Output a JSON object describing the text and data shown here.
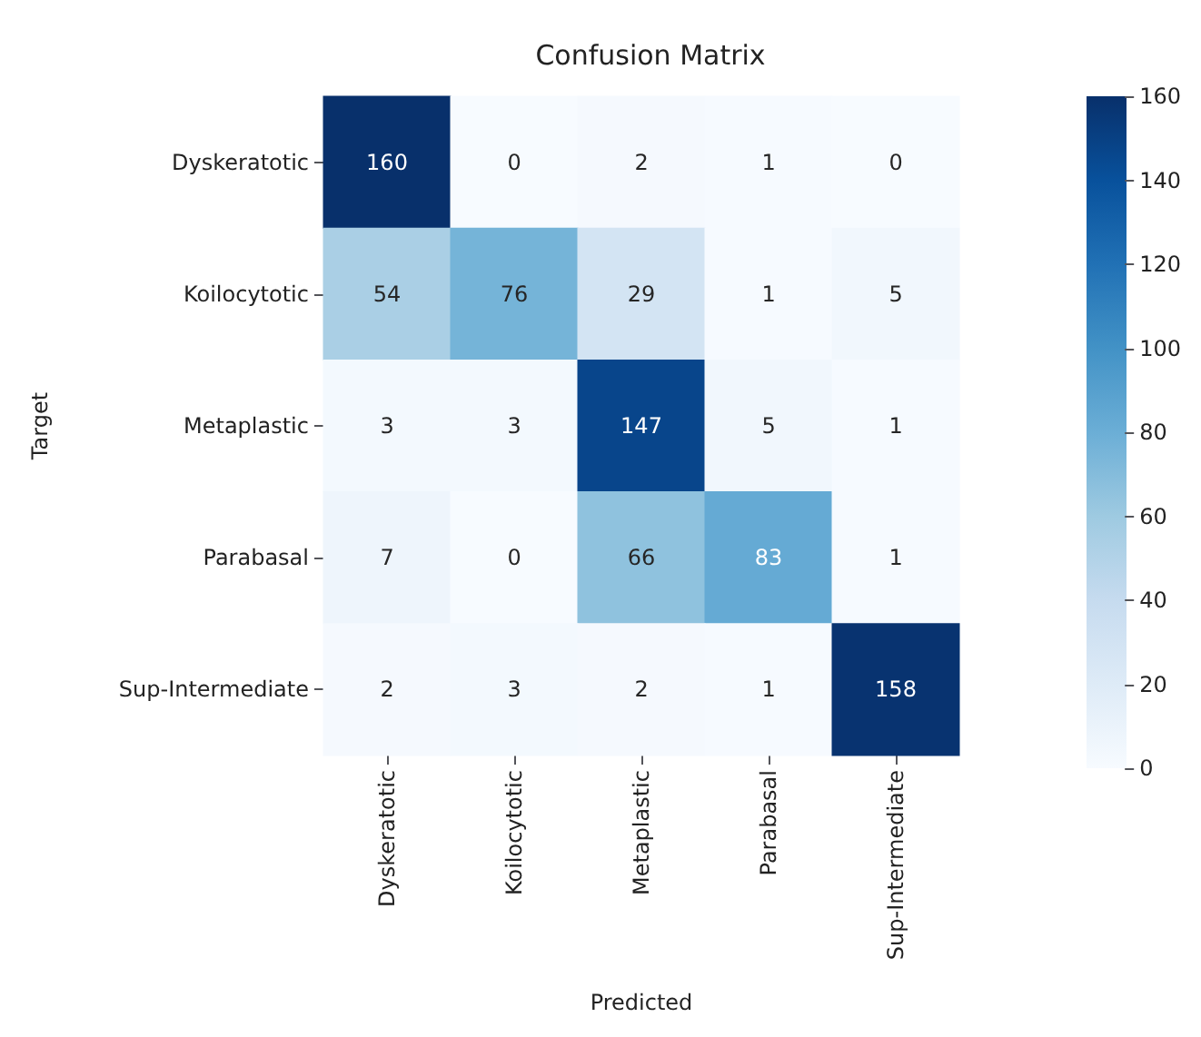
{
  "chart_data": {
    "type": "heatmap",
    "title": "Confusion Matrix",
    "xlabel": "Predicted",
    "ylabel": "Target",
    "categories": [
      "Dyskeratotic",
      "Koilocytotic",
      "Metaplastic",
      "Parabasal",
      "Sup-Intermediate"
    ],
    "y_categories": [
      "Dyskeratotic",
      "Koilocytotic",
      "Metaplastic",
      "Parabasal",
      "Sup-Intermediate"
    ],
    "cells": [
      [
        160,
        0,
        2,
        1,
        0
      ],
      [
        54,
        76,
        29,
        1,
        5
      ],
      [
        3,
        3,
        147,
        5,
        1
      ],
      [
        7,
        0,
        66,
        83,
        1
      ],
      [
        2,
        3,
        2,
        1,
        158
      ]
    ],
    "clim": [
      0,
      160
    ],
    "cticks": [
      0,
      20,
      40,
      60,
      80,
      100,
      120,
      140,
      160
    ],
    "data_labels": true
  }
}
